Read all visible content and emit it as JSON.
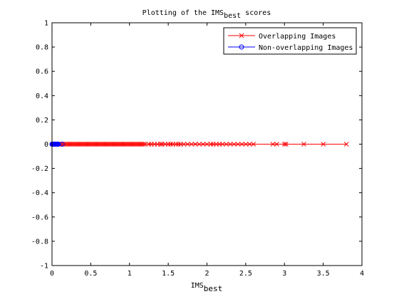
{
  "chart_data": {
    "type": "line",
    "title": {
      "main": "Plotting of the IMS",
      "sub": "best",
      "suffix": " scores"
    },
    "xlabel": {
      "main": "IMS",
      "sub": "best"
    },
    "ylabel": "",
    "xlim": [
      0,
      4
    ],
    "ylim": [
      -1,
      1
    ],
    "x_ticks": [
      "0",
      "0.5",
      "1",
      "1.5",
      "2",
      "2.5",
      "3",
      "3.5",
      "4"
    ],
    "y_ticks": [
      "-1",
      "-0.8",
      "-0.6",
      "-0.4",
      "-0.2",
      "0",
      "0.2",
      "0.4",
      "0.6",
      "0.8",
      "1"
    ],
    "grid": false,
    "legend_position": "top-right",
    "series": [
      {
        "name": "Overlapping Images",
        "color": "#ff0000",
        "marker": "x",
        "x": [
          0.02,
          0.04,
          0.06,
          0.08,
          0.1,
          0.12,
          0.14,
          0.16,
          0.18,
          0.2,
          0.22,
          0.24,
          0.26,
          0.28,
          0.3,
          0.32,
          0.34,
          0.36,
          0.38,
          0.4,
          0.42,
          0.44,
          0.46,
          0.48,
          0.5,
          0.52,
          0.54,
          0.56,
          0.58,
          0.6,
          0.62,
          0.64,
          0.66,
          0.68,
          0.7,
          0.72,
          0.74,
          0.76,
          0.78,
          0.8,
          0.82,
          0.84,
          0.86,
          0.88,
          0.9,
          0.92,
          0.94,
          0.96,
          0.98,
          1.0,
          1.02,
          1.04,
          1.06,
          1.08,
          1.1,
          1.12,
          1.14,
          1.16,
          1.18,
          1.2,
          1.25,
          1.28,
          1.32,
          1.36,
          1.4,
          1.42,
          1.46,
          1.5,
          1.53,
          1.56,
          1.6,
          1.63,
          1.66,
          1.7,
          1.75,
          1.8,
          1.85,
          1.9,
          1.95,
          2.0,
          2.05,
          2.08,
          2.12,
          2.16,
          2.2,
          2.25,
          2.3,
          2.35,
          2.4,
          2.45,
          2.5,
          2.55,
          2.6,
          2.85,
          2.9,
          3.0,
          3.02,
          3.25,
          3.5,
          3.8
        ],
        "y": [
          0,
          0,
          0,
          0,
          0,
          0,
          0,
          0,
          0,
          0,
          0,
          0,
          0,
          0,
          0,
          0,
          0,
          0,
          0,
          0,
          0,
          0,
          0,
          0,
          0,
          0,
          0,
          0,
          0,
          0,
          0,
          0,
          0,
          0,
          0,
          0,
          0,
          0,
          0,
          0,
          0,
          0,
          0,
          0,
          0,
          0,
          0,
          0,
          0,
          0,
          0,
          0,
          0,
          0,
          0,
          0,
          0,
          0,
          0,
          0,
          0,
          0,
          0,
          0,
          0,
          0,
          0,
          0,
          0,
          0,
          0,
          0,
          0,
          0,
          0,
          0,
          0,
          0,
          0,
          0,
          0,
          0,
          0,
          0,
          0,
          0,
          0,
          0,
          0,
          0,
          0,
          0,
          0,
          0,
          0,
          0,
          0,
          0,
          0,
          0
        ]
      },
      {
        "name": "Non-overlapping Images",
        "color": "#0000ff",
        "marker": "o",
        "x": [
          0.0,
          0.005,
          0.01,
          0.015,
          0.02,
          0.025,
          0.03,
          0.035,
          0.04,
          0.045,
          0.05,
          0.055,
          0.06,
          0.065,
          0.07,
          0.075,
          0.08,
          0.13
        ],
        "y": [
          0,
          0,
          0,
          0,
          0,
          0,
          0,
          0,
          0,
          0,
          0,
          0,
          0,
          0,
          0,
          0,
          0,
          0
        ]
      }
    ]
  }
}
